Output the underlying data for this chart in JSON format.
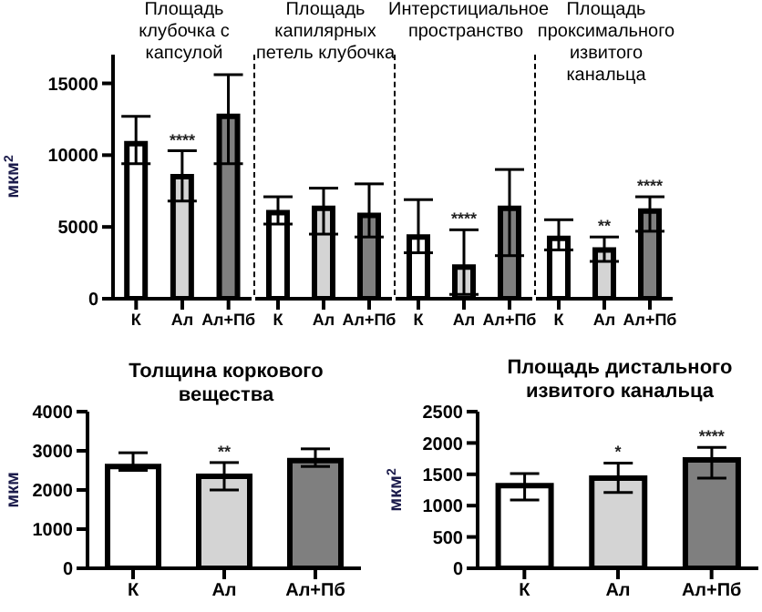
{
  "chart_data": [
    {
      "type": "bar",
      "title": "Площадь клубочка с капсулой",
      "ylabel": "мкм$^{2}$",
      "categories": [
        "К",
        "Ал",
        "Ал+Пб"
      ],
      "values": [
        10800,
        8500,
        12700
      ],
      "colors": [
        "#ffffff",
        "#d4d4d4",
        "#7f7f7f"
      ],
      "errors": [
        [
          9400,
          12700
        ],
        [
          6800,
          10300
        ],
        [
          9400,
          15600
        ]
      ],
      "ylim": [
        0,
        17000
      ],
      "yticks": [
        0,
        5000,
        10000,
        15000
      ],
      "annotations": [
        {
          "text": "****",
          "x": "Ал",
          "y": 10300
        }
      ]
    },
    {
      "type": "bar",
      "title": "Площадь капилярных петель клубочка",
      "categories": [
        "К",
        "Ал",
        "Ал+Пб"
      ],
      "values": [
        6000,
        6300,
        5800
      ],
      "colors": [
        "#ffffff",
        "#d4d4d4",
        "#7f7f7f"
      ],
      "errors": [
        [
          5200,
          7100
        ],
        [
          4500,
          7700
        ],
        [
          4300,
          8000
        ]
      ],
      "ylim": [
        0,
        17000
      ],
      "yticks": [
        0,
        5000,
        10000,
        15000
      ],
      "tick_labels": "x"
    },
    {
      "type": "bar",
      "title": "Интерстициальное пространство",
      "categories": [
        "К",
        "Ал",
        "Ал+Пб"
      ],
      "values": [
        4300,
        2200,
        6300
      ],
      "colors": [
        "#ffffff",
        "#d4d4d4",
        "#7f7f7f"
      ],
      "errors": [
        [
          3200,
          6900
        ],
        [
          300,
          4800
        ],
        [
          3000,
          9000
        ]
      ],
      "ylim": [
        0,
        17000
      ],
      "yticks": [
        0,
        5000,
        10000,
        15000
      ],
      "tick_labels": "x",
      "annotations": [
        {
          "text": "****",
          "x": "Ал",
          "y": 4800
        }
      ]
    },
    {
      "type": "bar",
      "title": "Площадь проксимального извитого канальца",
      "categories": [
        "К",
        "Ал",
        "Ал+Пб"
      ],
      "values": [
        4200,
        3400,
        6100
      ],
      "colors": [
        "#ffffff",
        "#d4d4d4",
        "#7f7f7f"
      ],
      "errors": [
        [
          3400,
          5500
        ],
        [
          2600,
          4300
        ],
        [
          4700,
          7100
        ]
      ],
      "ylim": [
        0,
        17000
      ],
      "yticks": [
        0,
        5000,
        10000,
        15000
      ],
      "tick_labels": "x",
      "annotations": [
        {
          "text": "**",
          "x": "Ал",
          "y": 4300
        },
        {
          "text": "****",
          "x": "Ал+Пб",
          "y": 7100
        }
      ]
    },
    {
      "type": "bar",
      "title": "Толщина коркового вещества",
      "ylabel": "мкм",
      "categories": [
        "К",
        "Ал",
        "Ал+Пб"
      ],
      "values": [
        2600,
        2350,
        2750
      ],
      "colors": [
        "#ffffff",
        "#d4d4d4",
        "#7f7f7f"
      ],
      "errors": [
        [
          2500,
          2950
        ],
        [
          2000,
          2700
        ],
        [
          2600,
          3050
        ]
      ],
      "ylim": [
        0,
        4000
      ],
      "yticks": [
        0,
        1000,
        2000,
        3000,
        4000
      ],
      "annotations": [
        {
          "text": "**",
          "x": "Ал",
          "y": 2700
        }
      ]
    },
    {
      "type": "bar",
      "title": "Площадь дистального извитого канальца",
      "ylabel": "мкм$^{2}$",
      "categories": [
        "К",
        "Ал",
        "Ал+Пб"
      ],
      "values": [
        1320,
        1440,
        1730
      ],
      "colors": [
        "#ffffff",
        "#d4d4d4",
        "#7f7f7f"
      ],
      "errors": [
        [
          1090,
          1510
        ],
        [
          1210,
          1680
        ],
        [
          1440,
          1930
        ]
      ],
      "ylim": [
        0,
        2500
      ],
      "yticks": [
        0,
        500,
        1000,
        1500,
        2000,
        2500
      ],
      "annotations": [
        {
          "text": "*",
          "x": "Ал",
          "y": 1680
        },
        {
          "text": "****",
          "x": "Ал+Пб",
          "y": 1930
        }
      ]
    }
  ]
}
